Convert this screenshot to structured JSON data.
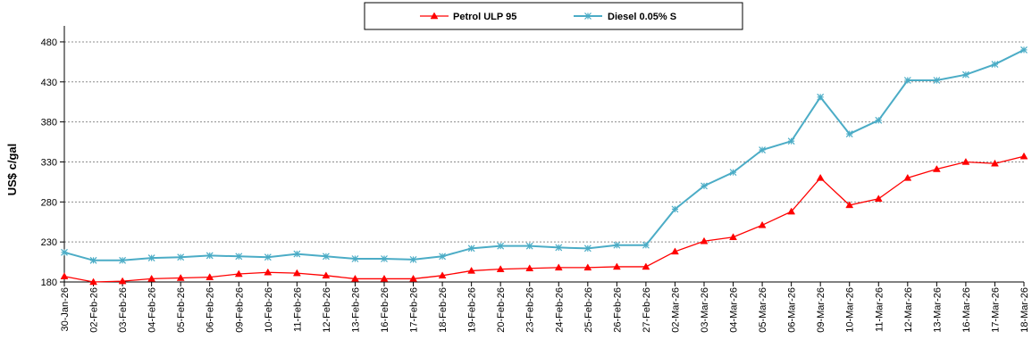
{
  "chart_data": {
    "type": "line",
    "ylabel": "US$ c/gal",
    "ylim": [
      180,
      500
    ],
    "y_ticks": [
      "180",
      "230",
      "280",
      "330",
      "380",
      "430",
      "480"
    ],
    "grid": "horizontal dashed",
    "legend_position": "top-center",
    "categories": [
      "30-Jan-26",
      "02-Feb-26",
      "03-Feb-26",
      "04-Feb-26",
      "05-Feb-26",
      "06-Feb-26",
      "09-Feb-26",
      "10-Feb-26",
      "11-Feb-26",
      "12-Feb-26",
      "13-Feb-26",
      "16-Feb-26",
      "17-Feb-26",
      "18-Feb-26",
      "19-Feb-26",
      "20-Feb-26",
      "23-Feb-26",
      "24-Feb-26",
      "25-Feb-26",
      "26-Feb-26",
      "27-Feb-26",
      "02-Mar-26",
      "03-Mar-26",
      "04-Mar-26",
      "05-Mar-26",
      "06-Mar-26",
      "09-Mar-26",
      "10-Mar-26",
      "11-Mar-26",
      "12-Mar-26",
      "13-Mar-26",
      "16-Mar-26",
      "17-Mar-26",
      "18-Mar-26"
    ],
    "series": [
      {
        "name": "Petrol ULP 95",
        "color": "#ff0000",
        "marker": "triangle",
        "values": [
          187,
          180,
          181,
          184,
          185,
          186,
          190,
          192,
          191,
          188,
          184,
          184,
          184,
          188,
          194,
          196,
          197,
          198,
          198,
          199,
          199,
          218,
          231,
          236,
          251,
          268,
          310,
          276,
          284,
          310,
          321,
          330,
          328,
          337
        ]
      },
      {
        "name": "Diesel 0.05% S",
        "color": "#4bacc6",
        "marker": "star",
        "values": [
          217,
          207,
          207,
          210,
          211,
          213,
          212,
          211,
          215,
          212,
          209,
          209,
          208,
          212,
          222,
          225,
          225,
          223,
          222,
          226,
          226,
          271,
          300,
          317,
          345,
          356,
          411,
          365,
          382,
          432,
          432,
          439,
          452,
          470
        ]
      }
    ]
  }
}
